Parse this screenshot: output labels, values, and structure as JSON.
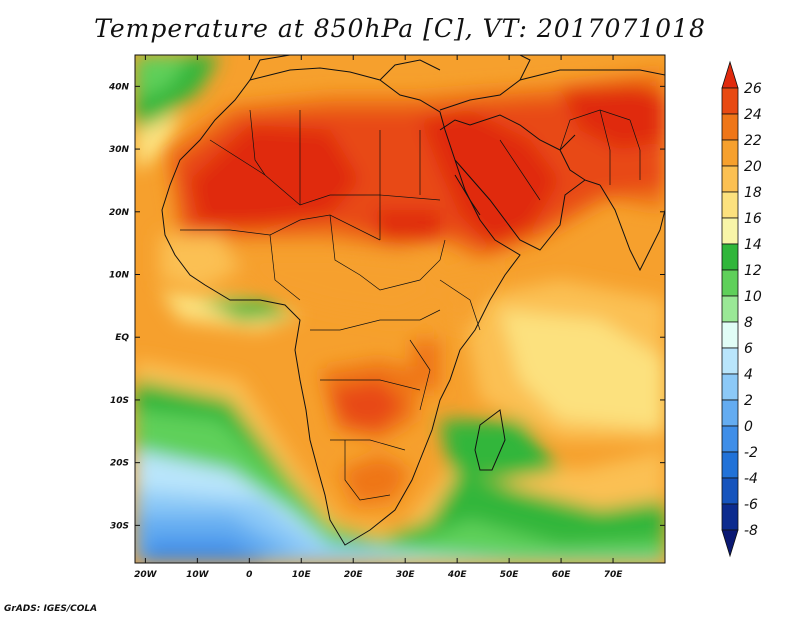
{
  "title": "Temperature at 850hPa [C], VT: 2017071018",
  "credit": "GrADS: IGES/COLA",
  "map": {
    "lat_labels": [
      "40N",
      "30N",
      "20N",
      "10N",
      "EQ",
      "10S",
      "20S",
      "30S"
    ],
    "lat_values": [
      40,
      30,
      20,
      10,
      0,
      -10,
      -20,
      -30
    ],
    "lon_labels": [
      "20W",
      "10W",
      "0",
      "10E",
      "20E",
      "30E",
      "40E",
      "50E",
      "60E",
      "70E"
    ],
    "lon_values": [
      -20,
      -10,
      0,
      10,
      20,
      30,
      40,
      50,
      60,
      70
    ],
    "lon_range": [
      -22,
      80
    ],
    "lat_range": [
      -36,
      45
    ]
  },
  "colorbar": {
    "labels": [
      "26",
      "24",
      "22",
      "20",
      "18",
      "16",
      "14",
      "12",
      "10",
      "8",
      "6",
      "4",
      "2",
      "0",
      "-2",
      "-4",
      "-6",
      "-8"
    ],
    "colors": [
      "#e02a0e",
      "#e84a12",
      "#ef7618",
      "#f6a02d",
      "#fbc052",
      "#fce17e",
      "#f8f5a8",
      "#30b63a",
      "#5fd05a",
      "#9ae896",
      "#e1fdf6",
      "#b9e5fb",
      "#8cc9f7",
      "#64acf1",
      "#3f8ee8",
      "#2172d8",
      "#1654bd",
      "#0c2b8e",
      "#0a1873"
    ]
  }
}
